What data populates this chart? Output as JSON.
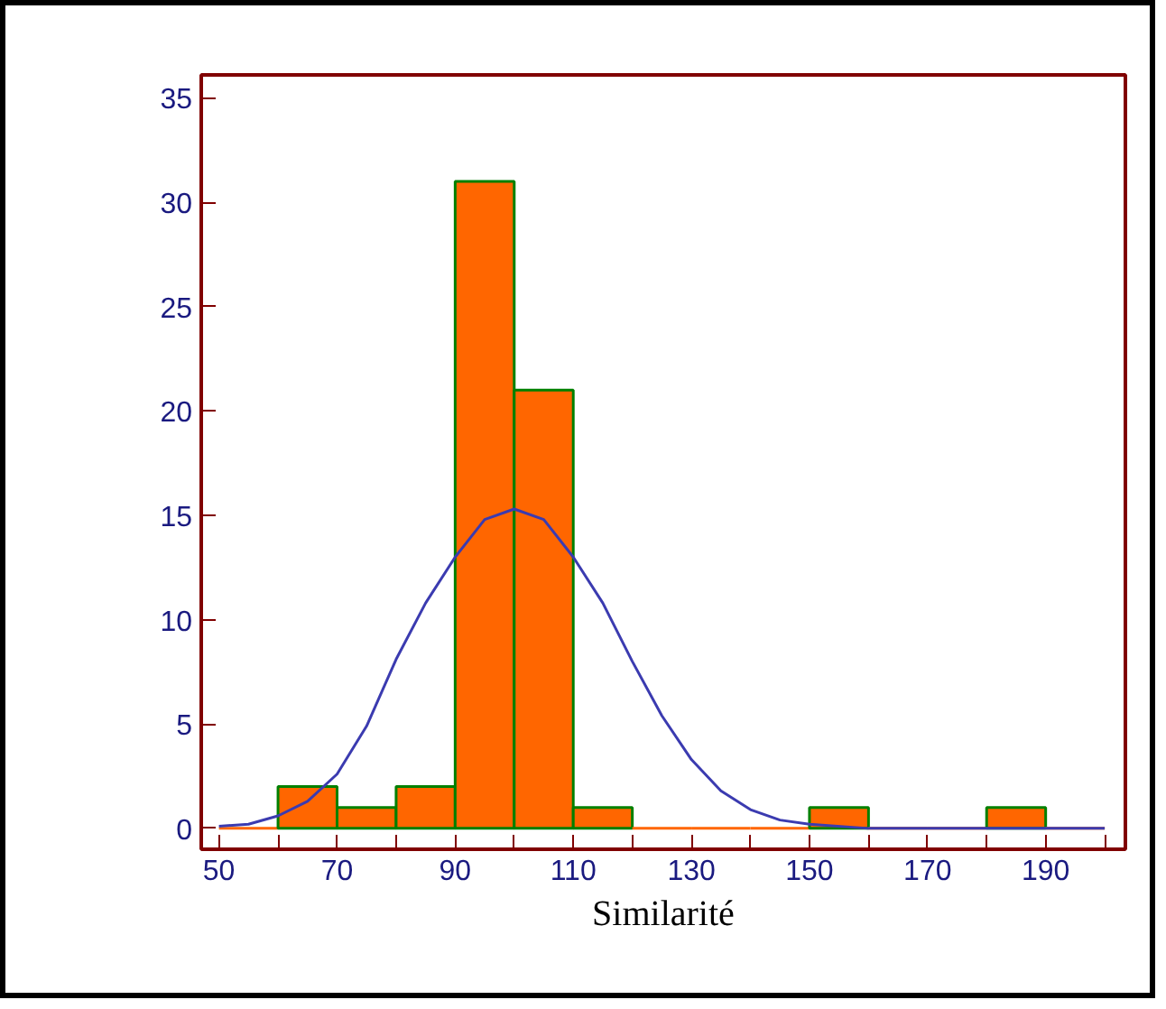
{
  "chart_data": {
    "type": "histogram",
    "xlabel": "Similarité",
    "bins": [
      50,
      60,
      70,
      80,
      90,
      100,
      110,
      120,
      130,
      140,
      150,
      160,
      170,
      180,
      190,
      200
    ],
    "values": [
      0,
      2,
      1,
      2,
      31,
      21,
      1,
      0,
      0,
      0,
      1,
      0,
      0,
      1,
      0
    ],
    "color": "#ff6600",
    "series": [
      {
        "type": "line",
        "color": "#3b3bb0",
        "x": [
          50,
          55,
          60,
          65,
          70,
          75,
          80,
          85,
          90,
          95,
          100,
          105,
          110,
          115,
          120,
          125,
          130,
          135,
          140,
          145,
          150,
          160,
          170,
          180,
          190,
          200
        ],
        "values": [
          0.1,
          0.2,
          0.6,
          1.3,
          2.6,
          4.9,
          8.1,
          10.8,
          13.0,
          14.8,
          15.3,
          14.8,
          13.0,
          10.8,
          8.0,
          5.4,
          3.3,
          1.8,
          0.9,
          0.4,
          0.2,
          0,
          0,
          0,
          0,
          0
        ]
      }
    ],
    "xlim": [
      47,
      203.5
    ],
    "ylim": [
      -1,
      36.1
    ],
    "xticks": [
      50,
      {
        "value": 60,
        "label": null
      },
      70,
      {
        "value": 80,
        "label": null
      },
      90,
      {
        "value": 100,
        "label": null
      },
      110,
      {
        "value": 120,
        "label": null
      },
      130,
      {
        "value": 140,
        "label": null
      },
      150,
      {
        "value": 160,
        "label": null
      },
      170,
      {
        "value": 180,
        "label": null
      },
      190,
      {
        "value": 200,
        "label": null
      }
    ],
    "yticks": [
      0,
      5,
      10,
      15,
      20,
      25,
      30,
      35
    ]
  }
}
